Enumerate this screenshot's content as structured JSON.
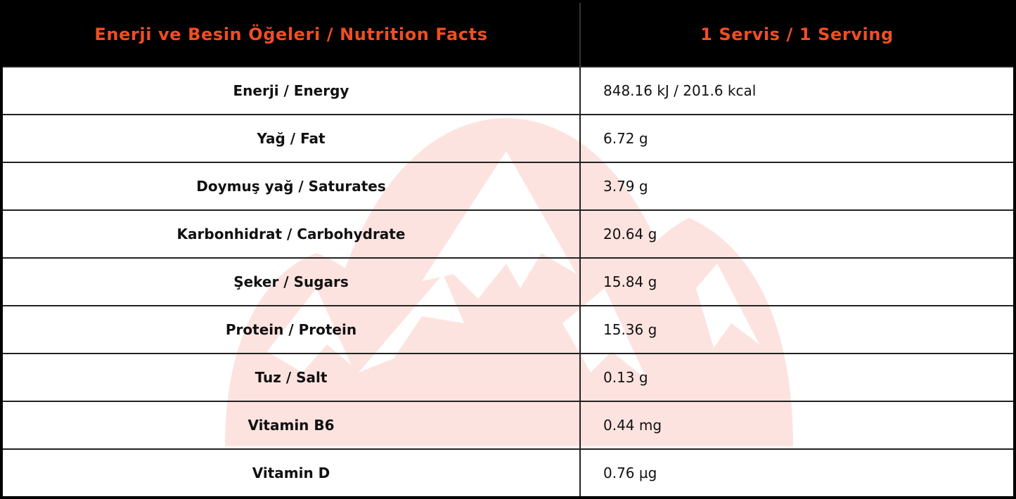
{
  "table": {
    "headers": {
      "nutrient": "Enerji ve Besin Öğeleri / Nutrition Facts",
      "per_serving": "1 Servis / 1 Serving"
    },
    "rows": [
      {
        "label": "Enerji / Energy",
        "value": "848.16 kJ / 201.6 kcal"
      },
      {
        "label": "Yağ / Fat",
        "value": "6.72 g"
      },
      {
        "label": "Doymuş yağ / Saturates",
        "value": "3.79 g"
      },
      {
        "label": "Karbonhidrat / Carbohydrate",
        "value": "20.64 g"
      },
      {
        "label": "Şeker / Sugars",
        "value": "15.84 g"
      },
      {
        "label": "Protein / Protein",
        "value": "15.36 g"
      },
      {
        "label": "Tuz / Salt",
        "value": "0.13 g"
      },
      {
        "label": "Vitamin B6",
        "value": "0.44 mg"
      },
      {
        "label": "Vitamin D",
        "value": "0.76 µg"
      }
    ]
  },
  "colors": {
    "header_background": "#000000",
    "header_text": "#f04e23",
    "watermark": "#fde3df",
    "grid_lines": "#222222"
  },
  "watermark": {
    "icon": "mountain-logo-icon"
  }
}
